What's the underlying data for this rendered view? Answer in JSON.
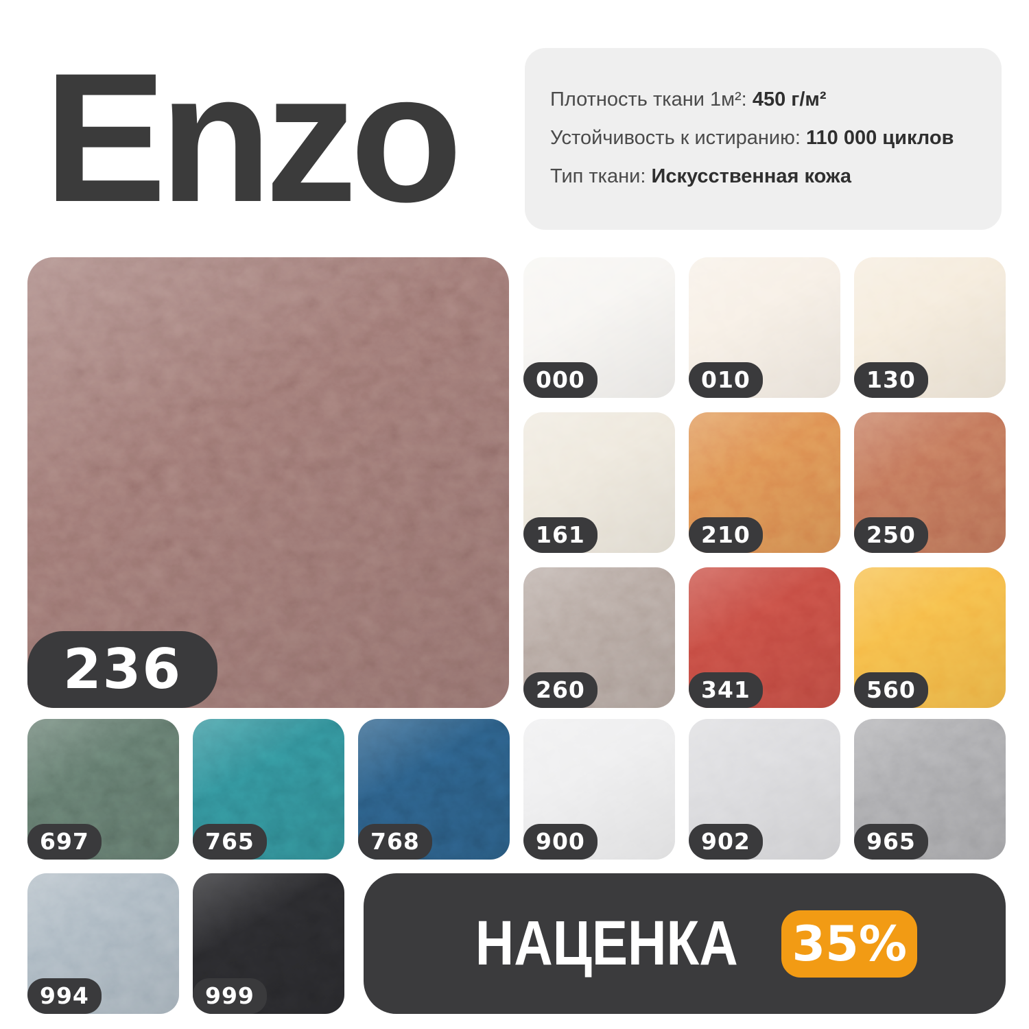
{
  "title": "Enzo",
  "specs": [
    {
      "label": "Плотность ткани 1м²: ",
      "value": "450 г/м²"
    },
    {
      "label": "Устойчивость к истиранию: ",
      "value": "110 000 циклов"
    },
    {
      "label": "Тип ткани: ",
      "value": "Искусственная кожа"
    }
  ],
  "main_swatch": {
    "code": "236",
    "color": "#9a7470"
  },
  "swatches": [
    {
      "code": "000",
      "color": "#f7f5f2",
      "row": 1,
      "col": 4
    },
    {
      "code": "010",
      "color": "#f7efe5",
      "row": 1,
      "col": 5
    },
    {
      "code": "130",
      "color": "#f5ebdb",
      "row": 1,
      "col": 6
    },
    {
      "code": "161",
      "color": "#eee8dc",
      "row": 2,
      "col": 4
    },
    {
      "code": "210",
      "color": "#dd8d50",
      "row": 2,
      "col": 5
    },
    {
      "code": "250",
      "color": "#c07257",
      "row": 2,
      "col": 6
    },
    {
      "code": "260",
      "color": "#b3a59e",
      "row": 3,
      "col": 4
    },
    {
      "code": "341",
      "color": "#c44a41",
      "row": 3,
      "col": 5
    },
    {
      "code": "560",
      "color": "#f6b946",
      "row": 3,
      "col": 6
    },
    {
      "code": "697",
      "color": "#5f7569",
      "row": 4,
      "col": 1
    },
    {
      "code": "765",
      "color": "#2f8a93",
      "row": 4,
      "col": 2
    },
    {
      "code": "768",
      "color": "#29597f",
      "row": 4,
      "col": 3
    },
    {
      "code": "900",
      "color": "#eeeeef",
      "row": 4,
      "col": 4
    },
    {
      "code": "902",
      "color": "#dadadd",
      "row": 4,
      "col": 5
    },
    {
      "code": "965",
      "color": "#a8a8ab",
      "row": 4,
      "col": 6
    },
    {
      "code": "994",
      "color": "#a9b6c0",
      "row": 5,
      "col": 1
    },
    {
      "code": "999",
      "color": "#28282b",
      "row": 5,
      "col": 2
    }
  ],
  "markup": {
    "label": "НАЦЕНКА",
    "value": "35%"
  },
  "colors": {
    "title_color": "#3b3b3b",
    "info_bg": "#efefef",
    "pill_dark": "#3a3a3c",
    "panel_dark": "#3b3b3d",
    "accent_orange": "#f29b14"
  }
}
